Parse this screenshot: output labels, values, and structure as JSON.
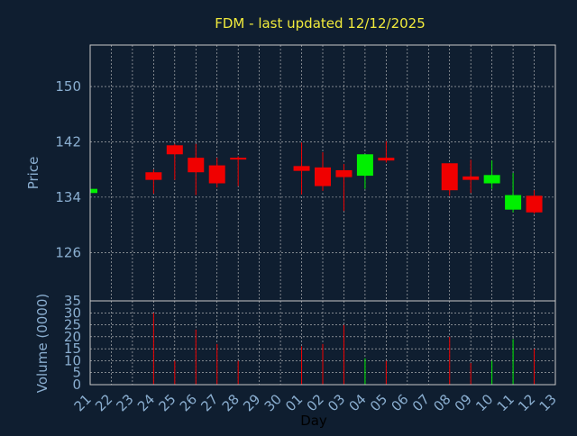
{
  "title": "FDM - last updated 12/12/2025",
  "colors": {
    "background": "#0f1e30",
    "title": "#f0ea3c",
    "axis_label": "#8aaed0",
    "grid": "#c8c8c8",
    "up": "#00f000",
    "down": "#f00000"
  },
  "chart_data": [
    {
      "type": "candlestick",
      "ylabel": "Price",
      "ylim": [
        119,
        156
      ],
      "yticks": [
        126,
        134,
        142,
        150
      ],
      "categories": [
        "21",
        "22",
        "23",
        "24",
        "25",
        "26",
        "27",
        "28",
        "29",
        "30",
        "01",
        "02",
        "03",
        "04",
        "05",
        "06",
        "07",
        "08",
        "09",
        "10",
        "11",
        "12",
        "13"
      ],
      "candles": [
        {
          "x": "21",
          "open": 134.6,
          "high": 135.0,
          "low": 134.4,
          "close": 135.2
        },
        {
          "x": "24",
          "open": 137.6,
          "high": 138.0,
          "low": 134.5,
          "close": 136.5
        },
        {
          "x": "25",
          "open": 141.5,
          "high": 141.7,
          "low": 136.5,
          "close": 140.2
        },
        {
          "x": "26",
          "open": 139.7,
          "high": 141.7,
          "low": 134.3,
          "close": 137.6
        },
        {
          "x": "27",
          "open": 138.6,
          "high": 139.7,
          "low": 135.4,
          "close": 136.0
        },
        {
          "x": "28",
          "open": 139.7,
          "high": 139.9,
          "low": 135.6,
          "close": 139.5
        },
        {
          "x": "01",
          "open": 138.5,
          "high": 141.9,
          "low": 134.4,
          "close": 137.8
        },
        {
          "x": "02",
          "open": 138.3,
          "high": 140.5,
          "low": 134.9,
          "close": 135.6
        },
        {
          "x": "03",
          "open": 137.9,
          "high": 138.8,
          "low": 132.0,
          "close": 136.9
        },
        {
          "x": "04",
          "open": 137.1,
          "high": 140.2,
          "low": 135.2,
          "close": 140.2
        },
        {
          "x": "05",
          "open": 139.7,
          "high": 142.1,
          "low": 139.0,
          "close": 139.3
        },
        {
          "x": "08",
          "open": 138.9,
          "high": 138.9,
          "low": 134.2,
          "close": 135.0
        },
        {
          "x": "09",
          "open": 137.0,
          "high": 139.4,
          "low": 134.6,
          "close": 136.5
        },
        {
          "x": "10",
          "open": 136.0,
          "high": 139.3,
          "low": 135.2,
          "close": 137.2
        },
        {
          "x": "11",
          "open": 132.2,
          "high": 137.5,
          "low": 131.8,
          "close": 134.3
        },
        {
          "x": "12",
          "open": 134.2,
          "high": 135.0,
          "low": 131.6,
          "close": 131.8
        }
      ]
    },
    {
      "type": "bar",
      "ylabel": "Volume (0000)",
      "xlabel": "Day",
      "ylim": [
        0,
        35
      ],
      "yticks": [
        0,
        5,
        10,
        15,
        20,
        25,
        30,
        35
      ],
      "categories": [
        "21",
        "22",
        "23",
        "24",
        "25",
        "26",
        "27",
        "28",
        "29",
        "30",
        "01",
        "02",
        "03",
        "04",
        "05",
        "06",
        "07",
        "08",
        "09",
        "10",
        "11",
        "12",
        "13"
      ],
      "bars": [
        {
          "x": "24",
          "value": 30,
          "color": "down"
        },
        {
          "x": "25",
          "value": 10,
          "color": "down"
        },
        {
          "x": "26",
          "value": 23,
          "color": "down"
        },
        {
          "x": "27",
          "value": 17,
          "color": "down"
        },
        {
          "x": "28",
          "value": 10,
          "color": "down"
        },
        {
          "x": "01",
          "value": 16,
          "color": "down"
        },
        {
          "x": "02",
          "value": 17,
          "color": "down"
        },
        {
          "x": "03",
          "value": 25,
          "color": "down"
        },
        {
          "x": "04",
          "value": 11,
          "color": "up"
        },
        {
          "x": "05",
          "value": 10,
          "color": "down"
        },
        {
          "x": "08",
          "value": 20,
          "color": "down"
        },
        {
          "x": "09",
          "value": 9,
          "color": "down"
        },
        {
          "x": "10",
          "value": 10,
          "color": "up"
        },
        {
          "x": "11",
          "value": 19,
          "color": "up"
        },
        {
          "x": "12",
          "value": 15,
          "color": "down"
        }
      ]
    }
  ]
}
